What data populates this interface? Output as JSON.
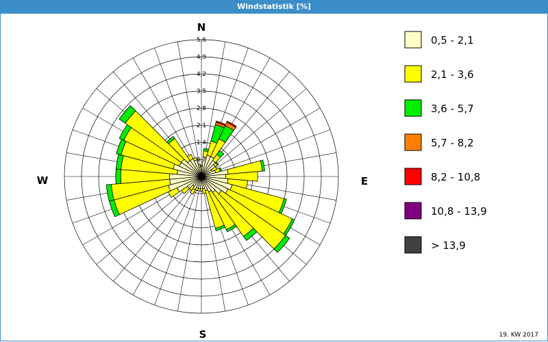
{
  "window": {
    "title": "Windstatistik [%]"
  },
  "footnote": "19. KW 2017",
  "chart_data": {
    "type": "polar-stacked-bar",
    "rings": [
      "0,7",
      "1,4",
      "2,1",
      "2,8",
      "3,5",
      "4,2",
      "4,9",
      "5,6"
    ],
    "directions": [
      "N",
      "E",
      "S",
      "W"
    ],
    "legend": [
      {
        "label": "0,5 - 2,1",
        "color": "#ffffc8"
      },
      {
        "label": "2,1 - 3,6",
        "color": "#ffff00"
      },
      {
        "label": "3,6 - 5,7",
        "color": "#00ee00"
      },
      {
        "label": "5,7 - 8,2",
        "color": "#ff8000"
      },
      {
        "label": "8,2 - 10,8",
        "color": "#ff0000"
      },
      {
        "label": "10,8 - 13,9",
        "color": "#800080"
      },
      {
        "label": "> 13,9",
        "color": "#404040"
      }
    ],
    "sectors": [
      {
        "angle": 0,
        "values": [
          0.3,
          0.1,
          0.05,
          0,
          0,
          0,
          0
        ]
      },
      {
        "angle": 10,
        "values": [
          0.8,
          0.25,
          0.1,
          0,
          0,
          0,
          0
        ]
      },
      {
        "angle": 20,
        "values": [
          0.9,
          0.6,
          0.7,
          0.1,
          0.05,
          0,
          0
        ]
      },
      {
        "angle": 30,
        "values": [
          0.9,
          0.8,
          0.6,
          0.15,
          0.05,
          0,
          0
        ]
      },
      {
        "angle": 40,
        "values": [
          0.8,
          0.3,
          0.2,
          0,
          0,
          0,
          0
        ]
      },
      {
        "angle": 50,
        "values": [
          0.7,
          0.1,
          0.05,
          0,
          0,
          0,
          0
        ]
      },
      {
        "angle": 60,
        "values": [
          0.5,
          0.2,
          0,
          0,
          0,
          0,
          0
        ]
      },
      {
        "angle": 70,
        "values": [
          0.6,
          0.2,
          0.05,
          0,
          0,
          0,
          0
        ]
      },
      {
        "angle": 80,
        "values": [
          1.1,
          1.4,
          0.1,
          0,
          0,
          0,
          0
        ]
      },
      {
        "angle": 90,
        "values": [
          1.0,
          1.3,
          0,
          0,
          0,
          0,
          0
        ]
      },
      {
        "angle": 100,
        "values": [
          1.1,
          0.8,
          0,
          0,
          0,
          0,
          0
        ]
      },
      {
        "angle": 110,
        "values": [
          1.3,
          2.2,
          0.1,
          0,
          0,
          0,
          0
        ]
      },
      {
        "angle": 120,
        "values": [
          1.2,
          2.9,
          0.1,
          0,
          0,
          0,
          0
        ]
      },
      {
        "angle": 130,
        "values": [
          1.0,
          3.2,
          0.2,
          0,
          0,
          0,
          0
        ]
      },
      {
        "angle": 140,
        "values": [
          0.8,
          2.2,
          0.2,
          0,
          0,
          0,
          0
        ]
      },
      {
        "angle": 150,
        "values": [
          0.7,
          1.7,
          0.1,
          0,
          0,
          0,
          0
        ]
      },
      {
        "angle": 160,
        "values": [
          0.6,
          1.6,
          0.1,
          0,
          0,
          0,
          0
        ]
      },
      {
        "angle": 170,
        "values": [
          0.5,
          0.2,
          0,
          0,
          0,
          0,
          0
        ]
      },
      {
        "angle": 180,
        "values": [
          0.5,
          0.1,
          0,
          0,
          0,
          0,
          0
        ]
      },
      {
        "angle": 190,
        "values": [
          0.5,
          0.1,
          0,
          0,
          0,
          0,
          0
        ]
      },
      {
        "angle": 200,
        "values": [
          0.5,
          0.1,
          0,
          0,
          0,
          0,
          0
        ]
      },
      {
        "angle": 210,
        "values": [
          0.6,
          0.2,
          0,
          0,
          0,
          0,
          0
        ]
      },
      {
        "angle": 220,
        "values": [
          0.5,
          0.2,
          0,
          0,
          0,
          0,
          0
        ]
      },
      {
        "angle": 230,
        "values": [
          0.7,
          0.3,
          0,
          0,
          0,
          0,
          0
        ]
      },
      {
        "angle": 240,
        "values": [
          1.1,
          0.4,
          0,
          0,
          0,
          0,
          0
        ]
      },
      {
        "angle": 250,
        "values": [
          1.4,
          2.3,
          0.2,
          0,
          0,
          0,
          0
        ]
      },
      {
        "angle": 260,
        "values": [
          1.3,
          2.4,
          0.2,
          0,
          0,
          0,
          0
        ]
      },
      {
        "angle": 270,
        "values": [
          1.3,
          2.0,
          0.2,
          0,
          0,
          0,
          0
        ]
      },
      {
        "angle": 280,
        "values": [
          1.0,
          2.3,
          0.2,
          0,
          0,
          0,
          0
        ]
      },
      {
        "angle": 290,
        "values": [
          1.2,
          2.2,
          0.2,
          0,
          0,
          0,
          0
        ]
      },
      {
        "angle": 300,
        "values": [
          1.0,
          2.5,
          0.2,
          0,
          0,
          0,
          0
        ]
      },
      {
        "angle": 310,
        "values": [
          1.0,
          2.8,
          0.3,
          0,
          0,
          0,
          0
        ]
      },
      {
        "angle": 320,
        "values": [
          0.8,
          1.1,
          0.1,
          0,
          0,
          0,
          0
        ]
      },
      {
        "angle": 330,
        "values": [
          0.8,
          0.2,
          0,
          0,
          0,
          0,
          0
        ]
      },
      {
        "angle": 340,
        "values": [
          0.7,
          0.1,
          0,
          0,
          0,
          0,
          0
        ]
      },
      {
        "angle": 350,
        "values": [
          0.4,
          0.1,
          0,
          0,
          0,
          0,
          0
        ]
      }
    ]
  }
}
